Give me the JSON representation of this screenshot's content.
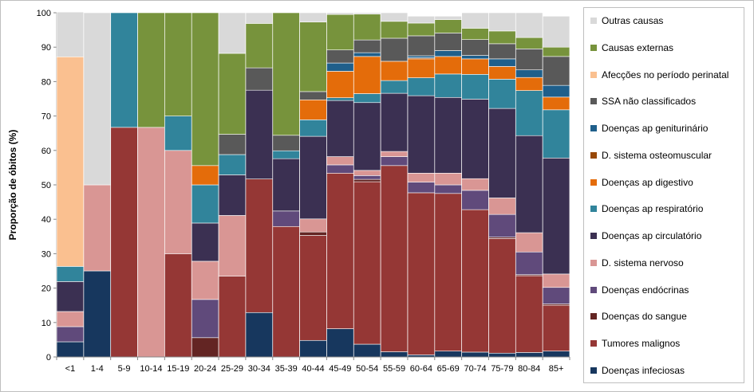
{
  "chart_data": {
    "type": "bar",
    "stacked": true,
    "title": "",
    "xlabel": "",
    "ylabel": "Proporção de óbitos (%)",
    "ylim": [
      0,
      100
    ],
    "yticks": [
      0,
      10,
      20,
      30,
      40,
      50,
      60,
      70,
      80,
      90,
      100
    ],
    "grid": false,
    "legend_position": "right",
    "categories": [
      "<1",
      "1-4",
      "5-9",
      "10-14",
      "15-19",
      "20-24",
      "25-29",
      "30-34",
      "35-39",
      "40-44",
      "45-49",
      "50-54",
      "55-59",
      "60-64",
      "65-69",
      "70-74",
      "75-79",
      "80-84",
      "85+"
    ],
    "series": [
      {
        "name": "Doenças infeciosas",
        "color": "#17375e",
        "values": [
          4.4,
          25,
          0,
          0,
          0,
          0,
          0,
          12.9,
          0,
          4.8,
          8.2,
          3.7,
          1.5,
          0.6,
          1.7,
          1.4,
          1.1,
          1.3,
          1.7
        ]
      },
      {
        "name": "Tumores malignos",
        "color": "#953735",
        "values": [
          0,
          0,
          66.7,
          0,
          30,
          0,
          23.5,
          38.8,
          37.9,
          30.5,
          45.2,
          47.2,
          54.1,
          47.1,
          45.8,
          41.4,
          33.3,
          22.3,
          13.3
        ]
      },
      {
        "name": "Doenças do sangue",
        "color": "#632523",
        "values": [
          0,
          0,
          0,
          0,
          0,
          5.6,
          0,
          0,
          0,
          1.0,
          0,
          0.7,
          0,
          0,
          0,
          0,
          0.4,
          0.3,
          0.4
        ]
      },
      {
        "name": "Doenças endócrinas",
        "color": "#604a7b",
        "values": [
          4.4,
          0,
          0,
          0,
          0,
          11.1,
          0,
          0,
          4.5,
          0,
          2.4,
          1.1,
          2.6,
          3.1,
          2.5,
          5.6,
          6.6,
          6.6,
          4.8
        ]
      },
      {
        "name": "D. sistema nervoso",
        "color": "#d99694",
        "values": [
          4.4,
          25,
          0,
          66.7,
          30,
          11.1,
          17.6,
          0,
          0,
          3.8,
          2.4,
          1.5,
          1.5,
          2.6,
          3.4,
          3.4,
          4.8,
          5.6,
          3.9
        ]
      },
      {
        "name": "Doenças ap circulatório",
        "color": "#3b3052",
        "values": [
          8.7,
          0,
          0,
          0,
          0,
          11.1,
          11.8,
          25.8,
          15.2,
          24.0,
          16.3,
          19.7,
          16.9,
          22.5,
          22.0,
          23.1,
          26.0,
          28.2,
          33.7
        ]
      },
      {
        "name": "Doenças ap respiratório",
        "color": "#31849b",
        "values": [
          4.4,
          0,
          33.3,
          0,
          10,
          11.1,
          5.9,
          0,
          2.3,
          4.8,
          0.8,
          2.6,
          3.7,
          5.2,
          6.8,
          7.2,
          8.5,
          13.1,
          14.0
        ]
      },
      {
        "name": "Doenças ap digestivo",
        "color": "#e46c0a",
        "values": [
          0,
          0,
          0,
          0,
          0,
          5.6,
          0,
          0,
          0,
          5.8,
          7.7,
          10.8,
          5.6,
          5.5,
          5.1,
          4.5,
          3.7,
          3.8,
          3.7
        ]
      },
      {
        "name": "D. sistema osteomuscular",
        "color": "#984807",
        "values": [
          0,
          0,
          0,
          0,
          0,
          0,
          0,
          0,
          0,
          0,
          0,
          0,
          0,
          0.3,
          0,
          0,
          0,
          0,
          0
        ]
      },
      {
        "name": "Doenças ap geniturinário",
        "color": "#1f5f8b",
        "values": [
          0,
          0,
          0,
          0,
          0,
          0,
          0,
          0,
          0,
          0,
          2.4,
          1.1,
          0,
          0.6,
          1.7,
          1.0,
          2.2,
          2.2,
          3.4
        ]
      },
      {
        "name": "SSA não classificados",
        "color": "#595959",
        "values": [
          0,
          0,
          0,
          0,
          0,
          0,
          5.9,
          6.5,
          4.5,
          2.4,
          3.8,
          3.7,
          6.7,
          5.8,
          5.1,
          4.6,
          4.4,
          6.1,
          8.4
        ]
      },
      {
        "name": "Afecções no período perinatal",
        "color": "#fac090",
        "values": [
          60.9,
          0,
          0,
          0,
          0,
          0,
          0,
          0,
          0,
          0,
          0,
          0,
          0,
          0,
          0,
          0,
          0,
          0,
          0
        ]
      },
      {
        "name": "Causas externas",
        "color": "#77933c",
        "values": [
          0,
          0,
          0,
          33.3,
          30,
          44.4,
          23.5,
          12.9,
          35.6,
          20.2,
          10.3,
          7.5,
          4.9,
          3.7,
          3.9,
          3.3,
          3.7,
          3.3,
          2.7
        ]
      },
      {
        "name": "Outras causas",
        "color": "#d9d9d9",
        "values": [
          13.0,
          50,
          0,
          0,
          0,
          0,
          11.8,
          3.1,
          0,
          2.7,
          0.5,
          0.4,
          2.5,
          2.0,
          1.0,
          4.5,
          5.3,
          7.2,
          9.0
        ]
      }
    ]
  }
}
